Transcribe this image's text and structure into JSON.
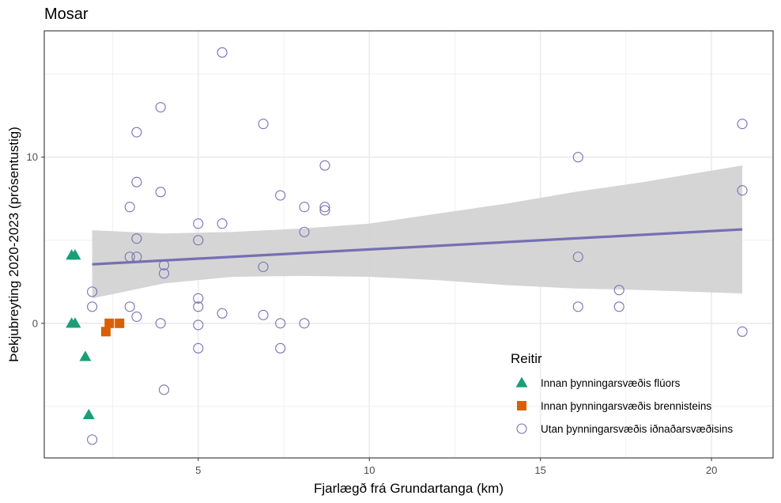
{
  "chart_data": {
    "type": "scatter",
    "title": "Mosar",
    "xlabel": "Fjarlægð frá Grundartanga (km)",
    "ylabel": "Þekjubreyting 2020-2023 (prósentustig)",
    "xlim": [
      0.5,
      21.8
    ],
    "ylim": [
      -8.1,
      17.6
    ],
    "x_ticks": [
      5,
      10,
      15,
      20
    ],
    "y_ticks": [
      0,
      10
    ],
    "grid": true,
    "legend": {
      "title": "Reitir",
      "placement": "bottom-right inside plot"
    },
    "series": [
      {
        "name": "Innan þynningarsvæðis flúors",
        "marker": "filled-triangle",
        "color": "#1b9e77",
        "points": [
          [
            1.3,
            4.1
          ],
          [
            1.4,
            4.1
          ],
          [
            1.3,
            0.0
          ],
          [
            1.4,
            0.0
          ],
          [
            1.7,
            -2.0
          ],
          [
            1.8,
            -5.5
          ]
        ]
      },
      {
        "name": "Innan þynningarsvæðis brennisteins",
        "marker": "filled-square",
        "color": "#d95f02",
        "points": [
          [
            2.3,
            -0.5
          ],
          [
            2.4,
            0.0
          ],
          [
            2.7,
            0.0
          ]
        ]
      },
      {
        "name": "Utan þynningarsvæðis iðnaðarsvæðisins",
        "marker": "open-circle",
        "color": "#7570b3",
        "points": [
          [
            1.9,
            1.9
          ],
          [
            1.9,
            1.0
          ],
          [
            1.9,
            -7.0
          ],
          [
            3.0,
            7.0
          ],
          [
            3.0,
            4.0
          ],
          [
            3.0,
            1.0
          ],
          [
            3.2,
            11.5
          ],
          [
            3.2,
            8.5
          ],
          [
            3.2,
            5.1
          ],
          [
            3.2,
            4.0
          ],
          [
            3.2,
            0.4
          ],
          [
            3.9,
            13.0
          ],
          [
            3.9,
            7.9
          ],
          [
            3.9,
            0.0
          ],
          [
            4.0,
            3.5
          ],
          [
            4.0,
            3.0
          ],
          [
            4.0,
            -4.0
          ],
          [
            5.0,
            6.0
          ],
          [
            5.0,
            5.0
          ],
          [
            5.0,
            1.5
          ],
          [
            5.0,
            1.0
          ],
          [
            5.0,
            -0.1
          ],
          [
            5.0,
            -1.5
          ],
          [
            5.7,
            16.3
          ],
          [
            5.7,
            6.0
          ],
          [
            5.7,
            0.6
          ],
          [
            6.9,
            12.0
          ],
          [
            6.9,
            3.4
          ],
          [
            6.9,
            0.5
          ],
          [
            7.4,
            7.7
          ],
          [
            7.4,
            0.0
          ],
          [
            7.4,
            -1.5
          ],
          [
            8.1,
            7.0
          ],
          [
            8.1,
            5.5
          ],
          [
            8.1,
            0.0
          ],
          [
            8.7,
            9.5
          ],
          [
            8.7,
            7.0
          ],
          [
            8.7,
            6.8
          ],
          [
            16.1,
            10.0
          ],
          [
            16.1,
            4.0
          ],
          [
            16.1,
            1.0
          ],
          [
            17.3,
            2.0
          ],
          [
            17.3,
            1.0
          ],
          [
            20.9,
            12.0
          ],
          [
            20.9,
            8.0
          ],
          [
            20.9,
            -0.5
          ]
        ]
      }
    ],
    "trend_line": {
      "color": "#7570b3",
      "x": [
        1.9,
        20.9
      ],
      "y": [
        3.55,
        5.65
      ]
    },
    "confidence_band": {
      "color": "#d3d3d3",
      "x": [
        1.9,
        4.0,
        6.0,
        8.0,
        10.0,
        12.0,
        14.0,
        16.0,
        18.0,
        20.9
      ],
      "upper": [
        5.6,
        5.4,
        5.5,
        5.7,
        6.0,
        6.6,
        7.2,
        7.9,
        8.5,
        9.5
      ],
      "lower": [
        1.5,
        2.4,
        2.8,
        2.85,
        2.8,
        2.6,
        2.3,
        2.1,
        2.0,
        1.8
      ]
    }
  }
}
